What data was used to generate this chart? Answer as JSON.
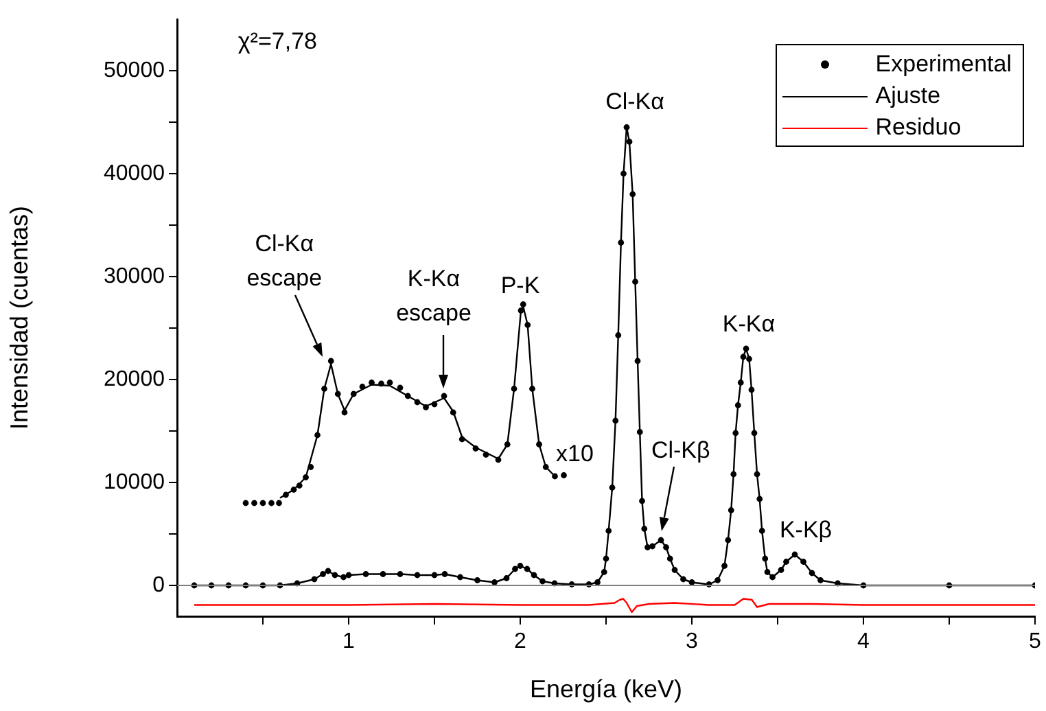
{
  "chart_data": {
    "type": "line",
    "xlabel": "Energía (keV)",
    "ylabel": "Intensidad (cuentas)",
    "xlim": [
      0,
      5
    ],
    "xticks": [
      {
        "value": 0.5,
        "label": null
      },
      1,
      {
        "value": 1.5,
        "label": null
      },
      2,
      {
        "value": 2.5,
        "label": null
      },
      3,
      {
        "value": 3.5,
        "label": null
      },
      4,
      {
        "value": 4.5,
        "label": null
      },
      5
    ],
    "ylim": [
      -3000,
      55000
    ],
    "yticks": [
      0,
      {
        "value": 5000,
        "label": null
      },
      10000,
      {
        "value": 15000,
        "label": null
      },
      20000,
      {
        "value": 25000,
        "label": null
      },
      30000,
      {
        "value": 35000,
        "label": null
      },
      40000,
      {
        "value": 45000,
        "label": null
      },
      50000
    ],
    "legend": "top right",
    "ref_lines": [
      {
        "axis": "y",
        "value": 0,
        "color": "#808080"
      }
    ],
    "series": [
      {
        "name": "Experimental",
        "type": "scatter",
        "marker": "circle",
        "color": "#000000",
        "x": [
          0.1,
          0.2,
          0.3,
          0.4,
          0.5,
          0.6,
          0.7,
          0.8,
          0.85,
          0.88,
          0.92,
          0.97,
          1.0,
          1.1,
          1.2,
          1.3,
          1.4,
          1.5,
          1.56,
          1.65,
          1.75,
          1.85,
          1.92,
          1.97,
          2.0,
          2.04,
          2.08,
          2.13,
          2.2,
          2.3,
          2.4,
          2.45,
          2.489,
          2.5,
          2.515,
          2.536,
          2.555,
          2.571,
          2.587,
          2.602,
          2.62,
          2.636,
          2.655,
          2.67,
          2.684,
          2.697,
          2.71,
          2.723,
          2.742,
          2.77,
          2.82,
          2.85,
          2.873,
          2.9,
          2.95,
          3.0,
          3.1,
          3.15,
          3.19,
          3.211,
          3.229,
          3.243,
          3.255,
          3.269,
          3.285,
          3.3,
          3.316,
          3.334,
          3.348,
          3.364,
          3.38,
          3.395,
          3.409,
          3.427,
          3.44,
          3.47,
          3.52,
          3.55,
          3.6,
          3.65,
          3.7,
          3.75,
          3.85,
          4.0,
          4.5,
          5.0
        ],
        "values": [
          0,
          0,
          0,
          0,
          0,
          0,
          200,
          600,
          1100,
          1400,
          1000,
          800,
          1000,
          1100,
          1100,
          1100,
          1000,
          1000,
          1100,
          800,
          500,
          300,
          700,
          1600,
          1900,
          1600,
          1000,
          400,
          200,
          100,
          100,
          300,
          1300,
          2600,
          5300,
          9500,
          16000,
          24300,
          33300,
          40000,
          44500,
          43100,
          38000,
          29500,
          21800,
          14900,
          8200,
          5500,
          3700,
          3800,
          4400,
          3700,
          2600,
          1500,
          600,
          300,
          100,
          500,
          1900,
          4400,
          7300,
          10800,
          14800,
          17500,
          19700,
          22200,
          23000,
          22000,
          19000,
          14800,
          10800,
          8400,
          5300,
          2600,
          1300,
          800,
          1500,
          2300,
          3000,
          2300,
          1200,
          500,
          200,
          0,
          0,
          0
        ]
      },
      {
        "name": "Ajuste",
        "type": "line",
        "color": "#000000",
        "x": [
          0.1,
          0.2,
          0.3,
          0.4,
          0.5,
          0.6,
          0.7,
          0.8,
          0.85,
          0.88,
          0.92,
          0.97,
          1.0,
          1.1,
          1.2,
          1.3,
          1.4,
          1.5,
          1.56,
          1.65,
          1.75,
          1.85,
          1.92,
          1.97,
          2.0,
          2.04,
          2.08,
          2.13,
          2.2,
          2.3,
          2.4,
          2.45,
          2.489,
          2.5,
          2.515,
          2.536,
          2.555,
          2.571,
          2.587,
          2.602,
          2.62,
          2.636,
          2.655,
          2.67,
          2.684,
          2.697,
          2.71,
          2.723,
          2.742,
          2.77,
          2.82,
          2.85,
          2.873,
          2.9,
          2.95,
          3.0,
          3.1,
          3.15,
          3.19,
          3.211,
          3.229,
          3.243,
          3.255,
          3.269,
          3.285,
          3.3,
          3.316,
          3.334,
          3.348,
          3.364,
          3.38,
          3.395,
          3.409,
          3.427,
          3.44,
          3.47,
          3.52,
          3.55,
          3.6,
          3.65,
          3.7,
          3.75,
          3.85,
          4.0,
          4.5,
          5.0
        ],
        "values": [
          0,
          0,
          0,
          0,
          0,
          0,
          200,
          600,
          1100,
          1400,
          1000,
          800,
          1000,
          1100,
          1100,
          1100,
          1000,
          1000,
          1100,
          800,
          500,
          300,
          700,
          1600,
          1900,
          1600,
          1000,
          400,
          200,
          100,
          100,
          300,
          1300,
          2600,
          5300,
          9500,
          16000,
          24300,
          33300,
          40000,
          44500,
          43100,
          38000,
          29500,
          21800,
          14900,
          8200,
          5500,
          3700,
          3800,
          4400,
          3700,
          2600,
          1500,
          600,
          300,
          100,
          500,
          1900,
          4400,
          7300,
          10800,
          14800,
          17500,
          19700,
          22200,
          23000,
          22000,
          19000,
          14800,
          10800,
          8400,
          5300,
          2600,
          1300,
          800,
          1500,
          2300,
          3000,
          2300,
          1200,
          500,
          200,
          0,
          0,
          0
        ]
      },
      {
        "name": "Residuo",
        "type": "line",
        "color": "#ff0000",
        "x": [
          0.1,
          0.5,
          1.0,
          1.5,
          2.0,
          2.4,
          2.55,
          2.58,
          2.6,
          2.62,
          2.65,
          2.68,
          2.75,
          2.9,
          3.1,
          3.25,
          3.3,
          3.35,
          3.38,
          3.45,
          3.7,
          4.0,
          4.5,
          5.0
        ],
        "values": [
          -1900,
          -1900,
          -1900,
          -1800,
          -1900,
          -1900,
          -1700,
          -1400,
          -1300,
          -1700,
          -2600,
          -2000,
          -1800,
          -1700,
          -1900,
          -1900,
          -1300,
          -1400,
          -2100,
          -1800,
          -1800,
          -1900,
          -1900,
          -1900
        ]
      },
      {
        "type": "scatter",
        "marker": "circle",
        "color": "#000000",
        "x": [
          0.4,
          0.45,
          0.5,
          0.55,
          0.594,
          0.634,
          0.68,
          0.713,
          0.75,
          0.779,
          0.818,
          0.858,
          0.897,
          0.937,
          0.976,
          1.029,
          1.08,
          1.134,
          1.19,
          1.24,
          1.3,
          1.345,
          1.4,
          1.45,
          1.5,
          1.556,
          1.609,
          1.661,
          1.74,
          1.8,
          1.872,
          1.925,
          1.964,
          2.004,
          2.017,
          2.043,
          2.07,
          2.11,
          2.149,
          2.202,
          2.254
        ],
        "values": [
          8000,
          8000,
          8000,
          8000,
          8000,
          8800,
          9300,
          9700,
          10500,
          11500,
          14600,
          19100,
          21800,
          18600,
          16800,
          18600,
          19300,
          19700,
          19600,
          19700,
          19200,
          18400,
          17800,
          17300,
          17600,
          18400,
          16800,
          14200,
          13300,
          12700,
          12200,
          13700,
          19100,
          26700,
          27300,
          25300,
          19100,
          13700,
          11500,
          10600,
          10700
        ]
      },
      {
        "type": "line",
        "color": "#000000",
        "x": [
          0.6,
          0.68,
          0.75,
          0.818,
          0.858,
          0.897,
          0.937,
          0.976,
          1.029,
          1.134,
          1.24,
          1.345,
          1.45,
          1.556,
          1.609,
          1.661,
          1.74,
          1.872,
          1.925,
          1.964,
          2.004,
          2.017,
          2.043,
          2.07,
          2.11,
          2.149,
          2.202
        ],
        "values": [
          8500,
          9300,
          10500,
          14600,
          19100,
          21500,
          18600,
          17000,
          18600,
          19500,
          19400,
          18400,
          17400,
          18200,
          16900,
          14400,
          13400,
          12300,
          13700,
          19100,
          26700,
          27100,
          25300,
          19100,
          13700,
          11500,
          10600
        ]
      }
    ],
    "annotations": [
      "χ²=7,78",
      "Cl-Kα\nescape",
      {
        "text": "K-Kα\nescape",
        "x": 1.56,
        "y": 18400
      },
      {
        "text": "P-K",
        "x": 2.0,
        "y": 27300
      },
      {
        "text": "Cl-Kα",
        "x": 2.62,
        "y": 44500
      },
      "Cl-Kβ",
      {
        "text": "K-Kα",
        "x": 3.316,
        "y": 23000
      },
      {
        "text": "K-Kβ",
        "x": 3.6,
        "y": 3000
      },
      {
        "text": "x10",
        "x": 2.254,
        "y": 10700
      }
    ]
  }
}
